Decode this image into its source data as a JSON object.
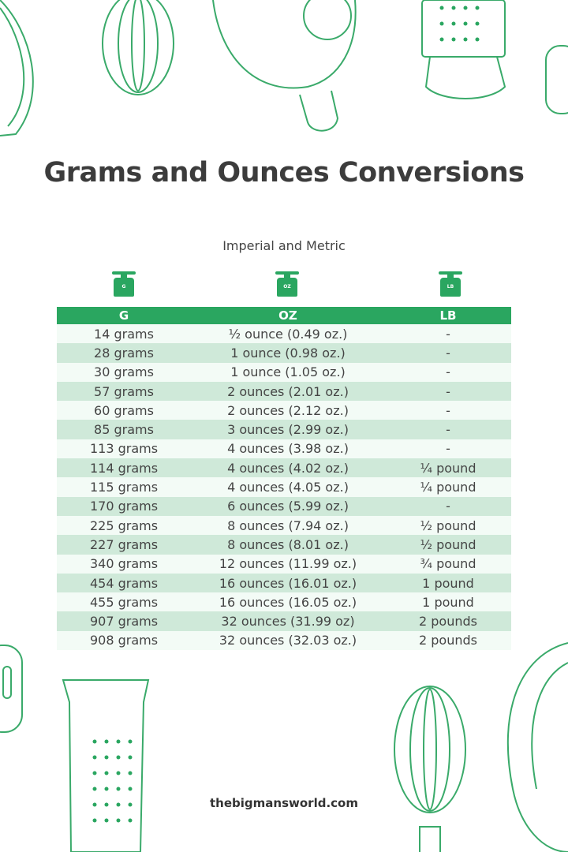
{
  "title": "Grams and Ounces Conversions",
  "subtitle": "Imperial and Metric",
  "icons": [
    {
      "name": "scale-icon",
      "label": "G"
    },
    {
      "name": "scale-icon",
      "label": "OZ"
    },
    {
      "name": "scale-icon",
      "label": "LB"
    }
  ],
  "colors": {
    "accent": "#2aa660",
    "row_light": "#f3fbf6",
    "row_dark": "#cfe9d9"
  },
  "table": {
    "headers": [
      "G",
      "OZ",
      "LB"
    ],
    "rows": [
      [
        "14 grams",
        "½ ounce (0.49 oz.)",
        "-"
      ],
      [
        "28 grams",
        "1 ounce (0.98 oz.)",
        "-"
      ],
      [
        "30 grams",
        "1 ounce (1.05 oz.)",
        "-"
      ],
      [
        "57 grams",
        "2 ounces (2.01 oz.)",
        "-"
      ],
      [
        "60 grams",
        "2 ounces (2.12 oz.)",
        "-"
      ],
      [
        "85 grams",
        "3 ounces (2.99 oz.)",
        "-"
      ],
      [
        "113 grams",
        "4 ounces (3.98 oz.)",
        "-"
      ],
      [
        "114 grams",
        "4 ounces (4.02 oz.)",
        "¼ pound"
      ],
      [
        "115 grams",
        "4 ounces (4.05 oz.)",
        "¼ pound"
      ],
      [
        "170 grams",
        "6 ounces (5.99 oz.)",
        "-"
      ],
      [
        "225 grams",
        "8 ounces (7.94 oz.)",
        "½ pound"
      ],
      [
        "227 grams",
        "8 ounces (8.01 oz.)",
        "½ pound"
      ],
      [
        "340 grams",
        "12 ounces (11.99 oz.)",
        "¾ pound"
      ],
      [
        "454 grams",
        "16 ounces (16.01 oz.)",
        "1 pound"
      ],
      [
        "455 grams",
        "16 ounces (16.05 oz.)",
        "1 pound"
      ],
      [
        "907 grams",
        "32 ounces (31.99 oz)",
        "2 pounds"
      ],
      [
        "908 grams",
        "32 ounces (32.03 oz.)",
        "2 pounds"
      ]
    ]
  },
  "footer": "thebigmansworld.com"
}
